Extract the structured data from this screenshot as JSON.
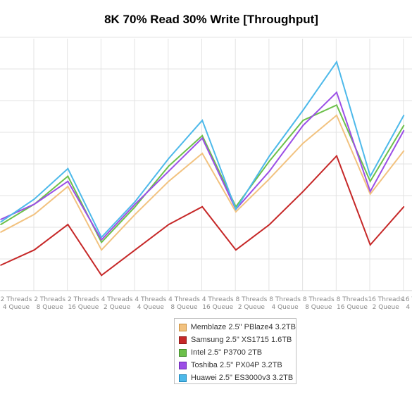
{
  "chart_data": {
    "type": "line",
    "title": "8K 70% Read 30% Write [Throughput]",
    "xlabel": "",
    "ylabel": "",
    "grid": true,
    "legend_position": "bottom-center",
    "categories": [
      [
        "2 Threads",
        "4 Queue"
      ],
      [
        "2 Threads",
        "8 Queue"
      ],
      [
        "2 Threads",
        "16 Queue"
      ],
      [
        "4 Threads",
        "2 Queue"
      ],
      [
        "4 Threads",
        "4 Queue"
      ],
      [
        "4 Threads",
        "8 Queue"
      ],
      [
        "4 Threads",
        "16 Queue"
      ],
      [
        "8 Threads",
        "2 Queue"
      ],
      [
        "8 Threads",
        "4 Queue"
      ],
      [
        "8 Threads",
        "8 Queue"
      ],
      [
        "8 Threads",
        "16 Queue"
      ],
      [
        "16 Threads",
        "2 Queue"
      ],
      [
        "16 Threads",
        "4 Queue"
      ]
    ],
    "ylim": [
      0,
      9
    ],
    "series": [
      {
        "name": "Memblaze 2.5\" PBlaze4 3.2TB",
        "color": "#f2c27f",
        "border": "#c98f3e",
        "values": [
          2.3,
          3.0,
          4.1,
          1.6,
          3.0,
          4.3,
          5.4,
          3.1,
          4.4,
          5.8,
          6.9,
          3.8,
          5.5
        ]
      },
      {
        "name": "Samsung 2.5\" XS1715 1.6TB",
        "color": "#c62828",
        "border": "#8e1a1a",
        "values": [
          1.0,
          1.6,
          2.6,
          0.6,
          1.6,
          2.6,
          3.3,
          1.6,
          2.6,
          3.9,
          5.3,
          1.8,
          3.3
        ]
      },
      {
        "name": "Intel 2.5\" P3700 2TB",
        "color": "#6cc04a",
        "border": "#3f8a28",
        "values": [
          2.6,
          3.4,
          4.5,
          1.9,
          3.3,
          4.9,
          6.1,
          3.3,
          5.1,
          6.7,
          7.3,
          4.3,
          6.5
        ]
      },
      {
        "name": "Toshiba 2.5\" PX04P 3.2TB",
        "color": "#9b4ee6",
        "border": "#6a27b0",
        "values": [
          2.8,
          3.4,
          4.3,
          2.0,
          3.4,
          4.7,
          6.0,
          3.2,
          4.7,
          6.5,
          7.8,
          3.9,
          6.3
        ]
      },
      {
        "name": "Huawei 2.5\" ES3000v3 3.2TB",
        "color": "#4db9ea",
        "border": "#1f86b8",
        "values": [
          2.7,
          3.6,
          4.8,
          2.1,
          3.5,
          5.2,
          6.7,
          3.2,
          5.3,
          7.1,
          9.0,
          4.5,
          6.9
        ]
      }
    ]
  }
}
